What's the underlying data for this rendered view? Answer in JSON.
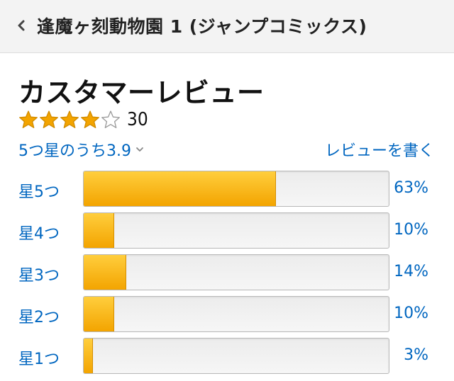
{
  "header": {
    "title": "逢魔ヶ刻動物園 1 (ジャンプコミックス)"
  },
  "reviews": {
    "section_title": "カスタマーレビュー",
    "rating_stars": 3.9,
    "review_count": "30",
    "average_text": "5つ星のうち3.9",
    "write_review": "レビューを書く",
    "histogram": [
      {
        "label": "星5つ",
        "percent_text": "63%",
        "percent": 63
      },
      {
        "label": "星4つ",
        "percent_text": "10%",
        "percent": 10
      },
      {
        "label": "星3つ",
        "percent_text": "14%",
        "percent": 14
      },
      {
        "label": "星2つ",
        "percent_text": "10%",
        "percent": 10
      },
      {
        "label": "星1つ",
        "percent_text": "3%",
        "percent": 3
      }
    ]
  },
  "colors": {
    "link": "#0066c0",
    "star": "#f3a400",
    "bar_fill": "#f3a400"
  },
  "icons": {
    "back": "chevron-left-icon",
    "dropdown": "chevron-down-icon",
    "star": "star-icon"
  }
}
